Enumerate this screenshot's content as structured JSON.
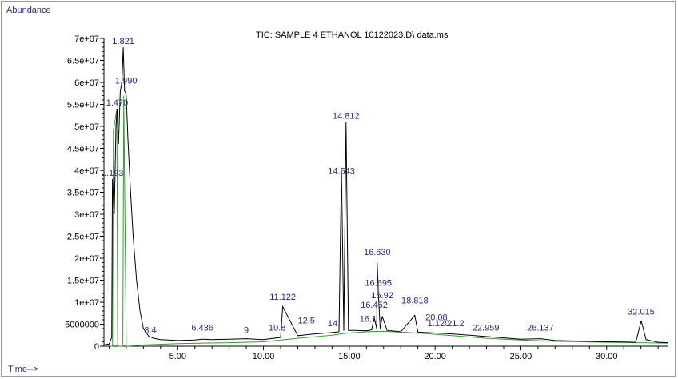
{
  "chart_data": {
    "type": "line",
    "title": "TIC: SAMPLE 4 ETHANOL 10122023.D\\ data.ms",
    "ylabel": "Abundance",
    "xlabel": "Time-->",
    "xlim": [
      0.7,
      33.6
    ],
    "ylim": [
      0,
      70000000
    ],
    "x_ticks": [
      5,
      10,
      15,
      20,
      25,
      30
    ],
    "x_tick_labels": [
      "5.00",
      "10.00",
      "15.00",
      "20.00",
      "25.00",
      "30.00"
    ],
    "y_ticks": [
      0,
      5000000,
      10000000,
      15000000,
      20000000,
      25000000,
      30000000,
      35000000,
      40000000,
      45000000,
      50000000,
      55000000,
      60000000,
      65000000,
      70000000
    ],
    "y_tick_labels": [
      "0",
      "5000000",
      "1e+07",
      "1.5e+07",
      "2e+07",
      "2.5e+07",
      "3e+07",
      "3.5e+07",
      "4e+07",
      "4.5e+07",
      "5e+07",
      "5.5e+07",
      "6e+07",
      "6.5e+07",
      "7e+07"
    ],
    "series": [
      {
        "x": [
          0.7,
          1.0,
          1.15,
          1.193,
          1.3,
          1.4,
          1.47,
          1.55,
          1.65,
          1.75,
          1.821,
          1.9,
          1.99,
          2.1,
          2.25,
          2.4,
          2.6,
          2.8,
          3.0,
          3.3,
          3.6,
          4.0,
          5.0,
          6.0,
          6.436,
          7.0,
          8.0,
          9.0,
          10.0,
          11.0,
          11.122,
          12.0,
          13.0,
          14.0,
          14.4,
          14.543,
          14.68,
          14.812,
          14.95,
          15.3,
          16.0,
          16.3,
          16.452,
          16.6,
          16.63,
          16.695,
          16.8,
          16.92,
          17.2,
          18.0,
          18.818,
          19.0,
          20.0,
          21.0,
          22.0,
          22.959,
          24.0,
          25.0,
          26.137,
          27.0,
          28.0,
          29.0,
          30.0,
          31.0,
          31.7,
          32.015,
          32.3,
          33.0,
          33.6
        ],
        "y": [
          300000,
          500000,
          2000000,
          38000000,
          30000000,
          50000000,
          54000000,
          46000000,
          58000000,
          60000000,
          68000000,
          58000000,
          57500000,
          47000000,
          35000000,
          25000000,
          15000000,
          8000000,
          4000000,
          2300000,
          1800000,
          1500000,
          1300000,
          1400000,
          1600000,
          1500000,
          1600000,
          1700000,
          1500000,
          2000000,
          9000000,
          2400000,
          2800000,
          3100000,
          3300000,
          40000000,
          3500000,
          51000000,
          3600000,
          3600000,
          3500000,
          3700000,
          6500000,
          4000000,
          19000000,
          12000000,
          4000000,
          6800000,
          3600000,
          3300000,
          7000000,
          3200000,
          3000000,
          2800000,
          2500000,
          2200000,
          1900000,
          1600000,
          1700000,
          1300000,
          1200000,
          1100000,
          1000000,
          950000,
          900000,
          5800000,
          1500000,
          900000,
          800000
        ]
      }
    ],
    "baseline": {
      "x": [
        1.0,
        1.2,
        1.25,
        1.45,
        1.5,
        1.8,
        1.85,
        2.0,
        2.1,
        3.0,
        5.0,
        8.0,
        10.0,
        12.0,
        14.0,
        14.5,
        15.0,
        16.0,
        17.0,
        17.5,
        18.0,
        19.0,
        20.0,
        21.0,
        22.0,
        23.0,
        25.0,
        27.0,
        30.0,
        33.6
      ],
      "y": [
        0,
        0,
        49000000,
        54000000,
        0,
        0,
        57000000,
        0,
        0,
        300000,
        600000,
        800000,
        1000000,
        1800000,
        2500000,
        2800000,
        3000000,
        3300000,
        3400000,
        3300000,
        3200000,
        3000000,
        2700000,
        2400000,
        2100000,
        1800000,
        1400000,
        1100000,
        900000,
        700000
      ]
    },
    "peak_labels": [
      {
        "text": "1.821",
        "x": 1.821,
        "y": 68000000
      },
      {
        "text": "1.990",
        "x": 1.99,
        "y": 59000000
      },
      {
        "text": "1.470",
        "x": 1.47,
        "y": 54000000
      },
      {
        "text": "1.193",
        "x": 1.193,
        "y": 38000000
      },
      {
        "text": "14.812",
        "x": 14.812,
        "y": 51000000
      },
      {
        "text": "14.543",
        "x": 14.543,
        "y": 38500000
      },
      {
        "text": "16.630",
        "x": 16.63,
        "y": 20000000
      },
      {
        "text": "16.695",
        "x": 16.695,
        "y": 13000000
      },
      {
        "text": "16.92",
        "x": 16.92,
        "y": 10200000
      },
      {
        "text": "16.452",
        "x": 16.452,
        "y": 8000000
      },
      {
        "text": "18.818",
        "x": 18.818,
        "y": 9000000
      },
      {
        "text": "11.122",
        "x": 11.122,
        "y": 9800000
      },
      {
        "text": "6.436",
        "x": 6.436,
        "y": 2800000
      },
      {
        "text": "3.4",
        "x": 3.4,
        "y": 2300000
      },
      {
        "text": "9",
        "x": 9.0,
        "y": 2300000
      },
      {
        "text": "10.8",
        "x": 10.8,
        "y": 2800000
      },
      {
        "text": "12.5",
        "x": 12.5,
        "y": 4500000
      },
      {
        "text": "14.",
        "x": 14.1,
        "y": 3800000
      },
      {
        "text": "16.1",
        "x": 16.1,
        "y": 4800000
      },
      {
        "text": "20.08",
        "x": 20.08,
        "y": 5200000
      },
      {
        "text": "1.120",
        "x": 20.2,
        "y": 3800000
      },
      {
        "text": "21.2",
        "x": 21.2,
        "y": 3800000
      },
      {
        "text": "22.959",
        "x": 22.959,
        "y": 2800000
      },
      {
        "text": "26.137",
        "x": 26.137,
        "y": 2800000
      },
      {
        "text": "32.015",
        "x": 32.015,
        "y": 6500000
      }
    ]
  },
  "colors": {
    "trace": "#000000",
    "baseline": "#2e9e2e",
    "label": "#2a2a7a"
  }
}
